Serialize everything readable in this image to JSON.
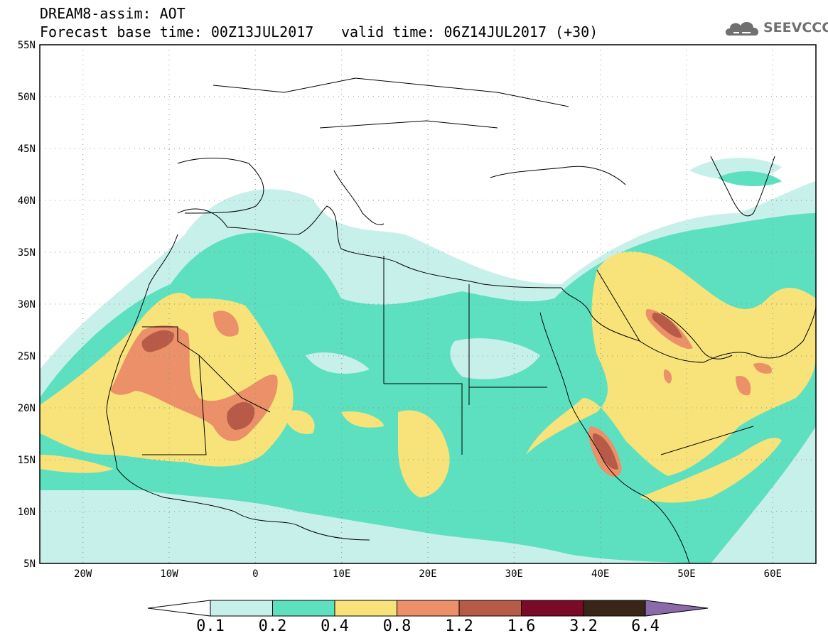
{
  "header": {
    "line1": "DREAM8-assim: AOT",
    "line2": "Forecast base time: 00Z13JUL2017",
    "line3": "valid time: 06Z14JUL2017 (+30)"
  },
  "logo": {
    "text": "SEEVCCC",
    "icon": "cloud-logo-icon"
  },
  "map": {
    "lon_range": [
      -25,
      65
    ],
    "lat_range": [
      5,
      55
    ],
    "lat_ticks": [
      "5N",
      "10N",
      "15N",
      "20N",
      "25N",
      "30N",
      "35N",
      "40N",
      "45N",
      "50N",
      "55N"
    ],
    "lon_ticks": [
      "20W",
      "10W",
      "0",
      "10E",
      "20E",
      "30E",
      "40E",
      "50E",
      "60E"
    ],
    "grid": true
  },
  "colorbar": {
    "labels": [
      "0.1",
      "0.2",
      "0.4",
      "0.8",
      "1.2",
      "1.6",
      "3.2",
      "6.4"
    ],
    "colors": [
      "#ffffff",
      "#c8f0ea",
      "#5ce0c0",
      "#f7e37a",
      "#eb9068",
      "#b85a48",
      "#7b0a28",
      "#3a2618",
      "#8a6aa8"
    ]
  }
}
